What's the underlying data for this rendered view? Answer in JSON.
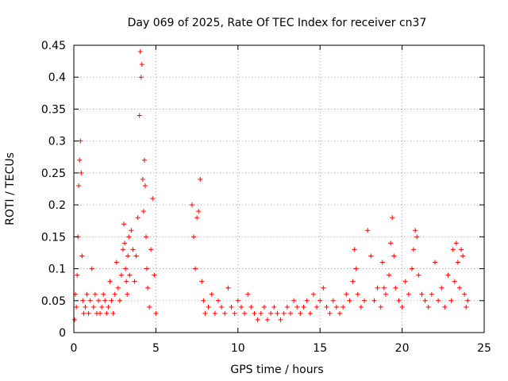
{
  "chart_data": {
    "type": "scatter",
    "title": "Day 069 of 2025, Rate Of TEC Index for receiver cn37",
    "xlabel": "GPS time / hours",
    "ylabel": "ROTI / TECUs",
    "xlim": [
      0,
      25
    ],
    "ylim": [
      0,
      0.45
    ],
    "xticks": [
      0,
      5,
      10,
      15,
      20,
      25
    ],
    "xtick_labels": [
      "0",
      "5",
      "10",
      "15",
      "20",
      "25"
    ],
    "yticks": [
      0,
      0.05,
      0.1,
      0.15,
      0.2,
      0.25,
      0.3,
      0.35,
      0.4,
      0.45
    ],
    "ytick_labels": [
      "0",
      "0.05",
      "0.1",
      "0.15",
      "0.2",
      "0.25",
      "0.3",
      "0.35",
      "0.4",
      "0.45"
    ],
    "grid": true,
    "marker": "+",
    "color": "#ff0000",
    "series": [
      {
        "name": "ROTI",
        "x": [
          0.05,
          0.1,
          0.15,
          0.2,
          0.25,
          0.3,
          0.35,
          0.4,
          0.45,
          0.5,
          0.55,
          0.6,
          0.7,
          0.8,
          0.9,
          1.0,
          1.1,
          1.2,
          1.3,
          1.4,
          1.5,
          1.6,
          1.7,
          1.8,
          1.9,
          2.0,
          2.1,
          2.2,
          2.3,
          2.4,
          2.5,
          2.6,
          2.7,
          2.8,
          2.9,
          3.0,
          3.05,
          3.1,
          3.15,
          3.2,
          3.25,
          3.3,
          3.35,
          3.4,
          3.5,
          3.6,
          3.7,
          3.8,
          3.9,
          4.0,
          4.05,
          4.1,
          4.15,
          4.2,
          4.25,
          4.3,
          4.35,
          4.4,
          4.45,
          4.5,
          4.6,
          4.7,
          4.8,
          4.9,
          5.0,
          7.2,
          7.3,
          7.4,
          7.5,
          7.6,
          7.7,
          7.8,
          7.9,
          8.0,
          8.2,
          8.4,
          8.6,
          8.8,
          9.0,
          9.2,
          9.4,
          9.6,
          9.8,
          10.0,
          10.2,
          10.4,
          10.6,
          10.8,
          11.0,
          11.2,
          11.4,
          11.6,
          11.8,
          12.0,
          12.2,
          12.4,
          12.6,
          12.8,
          13.0,
          13.2,
          13.4,
          13.6,
          13.8,
          14.0,
          14.2,
          14.4,
          14.6,
          14.8,
          15.0,
          15.2,
          15.4,
          15.6,
          15.8,
          16.0,
          16.2,
          16.4,
          16.6,
          16.8,
          17.0,
          17.1,
          17.2,
          17.3,
          17.5,
          17.7,
          17.9,
          18.1,
          18.3,
          18.5,
          18.7,
          18.8,
          18.9,
          19.0,
          19.2,
          19.3,
          19.4,
          19.5,
          19.6,
          19.8,
          20.0,
          20.2,
          20.4,
          20.6,
          20.7,
          20.8,
          20.9,
          21.0,
          21.2,
          21.4,
          21.6,
          21.8,
          22.0,
          22.2,
          22.4,
          22.6,
          22.8,
          23.0,
          23.1,
          23.2,
          23.3,
          23.4,
          23.5,
          23.6,
          23.7,
          23.8,
          23.9,
          24.0
        ],
        "y": [
          0.02,
          0.06,
          0.04,
          0.09,
          0.15,
          0.23,
          0.27,
          0.3,
          0.25,
          0.12,
          0.05,
          0.03,
          0.04,
          0.06,
          0.03,
          0.05,
          0.1,
          0.04,
          0.06,
          0.03,
          0.05,
          0.03,
          0.04,
          0.06,
          0.05,
          0.03,
          0.04,
          0.08,
          0.05,
          0.03,
          0.06,
          0.11,
          0.07,
          0.05,
          0.09,
          0.13,
          0.17,
          0.14,
          0.1,
          0.08,
          0.06,
          0.12,
          0.15,
          0.09,
          0.16,
          0.13,
          0.08,
          0.12,
          0.18,
          0.34,
          0.44,
          0.4,
          0.42,
          0.24,
          0.19,
          0.27,
          0.23,
          0.15,
          0.1,
          0.07,
          0.04,
          0.13,
          0.21,
          0.09,
          0.03,
          0.2,
          0.15,
          0.1,
          0.18,
          0.19,
          0.24,
          0.08,
          0.05,
          0.03,
          0.04,
          0.06,
          0.03,
          0.05,
          0.04,
          0.03,
          0.07,
          0.04,
          0.03,
          0.05,
          0.04,
          0.03,
          0.06,
          0.04,
          0.03,
          0.02,
          0.03,
          0.04,
          0.02,
          0.03,
          0.04,
          0.03,
          0.02,
          0.03,
          0.04,
          0.03,
          0.05,
          0.04,
          0.03,
          0.04,
          0.05,
          0.03,
          0.06,
          0.04,
          0.05,
          0.07,
          0.04,
          0.03,
          0.05,
          0.04,
          0.03,
          0.04,
          0.06,
          0.05,
          0.08,
          0.13,
          0.1,
          0.06,
          0.04,
          0.05,
          0.16,
          0.12,
          0.05,
          0.07,
          0.04,
          0.11,
          0.07,
          0.06,
          0.09,
          0.14,
          0.18,
          0.12,
          0.07,
          0.05,
          0.04,
          0.08,
          0.06,
          0.1,
          0.13,
          0.16,
          0.15,
          0.09,
          0.06,
          0.05,
          0.04,
          0.06,
          0.11,
          0.05,
          0.07,
          0.04,
          0.09,
          0.05,
          0.13,
          0.08,
          0.14,
          0.11,
          0.07,
          0.13,
          0.12,
          0.06,
          0.04,
          0.05
        ]
      }
    ]
  }
}
